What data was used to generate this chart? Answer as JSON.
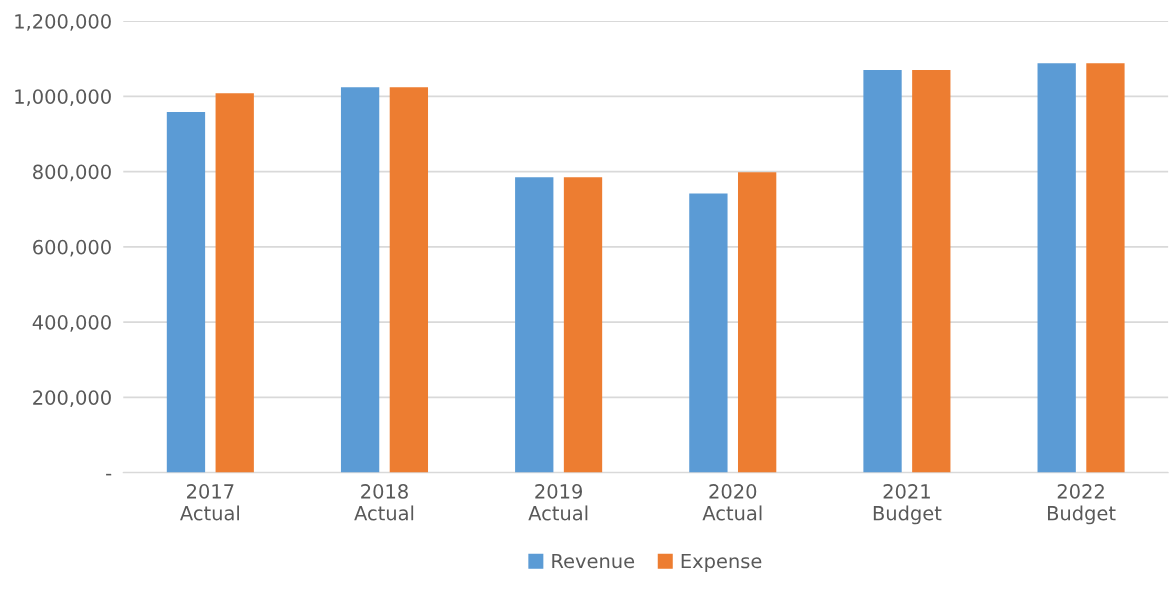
{
  "chart_data": {
    "type": "bar",
    "categories": [
      "2017\nActual",
      "2018\nActual",
      "2019\nActual",
      "2020\nActual",
      "2021\nBudget",
      "2022\nBudget"
    ],
    "series": [
      {
        "name": "Revenue",
        "color": "#5b9bd5",
        "values": [
          958000,
          1024000,
          785000,
          742000,
          1070000,
          1088000
        ]
      },
      {
        "name": "Expense",
        "color": "#ed7d31",
        "values": [
          1008000,
          1024000,
          785000,
          798000,
          1070000,
          1088000
        ]
      }
    ],
    "ylim": [
      0,
      1200000
    ],
    "yticks": [
      {
        "value": 0,
        "label": "-"
      },
      {
        "value": 200000,
        "label": "200,000"
      },
      {
        "value": 400000,
        "label": "400,000"
      },
      {
        "value": 600000,
        "label": "600,000"
      },
      {
        "value": 800000,
        "label": "800,000"
      },
      {
        "value": 1000000,
        "label": "1,000,000"
      },
      {
        "value": 1200000,
        "label": "1,200,000"
      }
    ],
    "grid": "y",
    "legend": "bottom"
  }
}
